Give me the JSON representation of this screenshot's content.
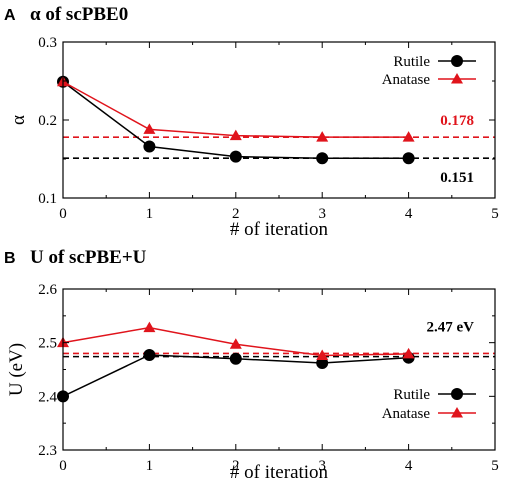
{
  "chart_data": [
    {
      "type": "line",
      "panel_letter": "A",
      "title": "α of scPBE0",
      "xlabel": "# of iteration",
      "ylabel": "α",
      "xlim": [
        0,
        5
      ],
      "ylim": [
        0.1,
        0.3
      ],
      "x_ticks": [
        "0",
        "1",
        "2",
        "3",
        "4",
        "5"
      ],
      "y_ticks": [
        "0.1",
        "0.2",
        "0.3"
      ],
      "legend_position": "top-right",
      "series": [
        {
          "name": "Rutile",
          "marker": "circle",
          "color": "#000000",
          "x": [
            0,
            1,
            2,
            3,
            4
          ],
          "y": [
            0.249,
            0.166,
            0.153,
            0.151,
            0.151
          ]
        },
        {
          "name": "Anatase",
          "marker": "triangle",
          "color": "#e0141c",
          "x": [
            0,
            1,
            2,
            3,
            4
          ],
          "y": [
            0.249,
            0.188,
            0.18,
            0.178,
            0.178
          ]
        }
      ],
      "reference_lines": [
        {
          "value": 0.178,
          "label": "0.178",
          "color": "#e0141c"
        },
        {
          "value": 0.151,
          "label": "0.151",
          "color": "#000000"
        }
      ]
    },
    {
      "type": "line",
      "panel_letter": "B",
      "title": "U of scPBE+U",
      "xlabel": "# of iteration",
      "ylabel": "U (eV)",
      "xlim": [
        0,
        5
      ],
      "ylim": [
        2.3,
        2.6
      ],
      "x_ticks": [
        "0",
        "1",
        "2",
        "3",
        "4",
        "5"
      ],
      "y_ticks": [
        "2.3",
        "2.4",
        "2.5",
        "2.6"
      ],
      "legend_position": "bottom-right",
      "series": [
        {
          "name": "Rutile",
          "marker": "circle",
          "color": "#000000",
          "x": [
            0,
            1,
            2,
            3,
            4
          ],
          "y": [
            2.4,
            2.477,
            2.47,
            2.462,
            2.472
          ]
        },
        {
          "name": "Anatase",
          "marker": "triangle",
          "color": "#e0141c",
          "x": [
            0,
            1,
            2,
            3,
            4
          ],
          "y": [
            2.5,
            2.528,
            2.497,
            2.476,
            2.479
          ]
        }
      ],
      "reference_lines": [
        {
          "value": 2.48,
          "label": "",
          "color": "#e0141c"
        },
        {
          "value": 2.474,
          "label": "",
          "color": "#000000"
        }
      ],
      "annotation": "2.47 eV"
    }
  ]
}
